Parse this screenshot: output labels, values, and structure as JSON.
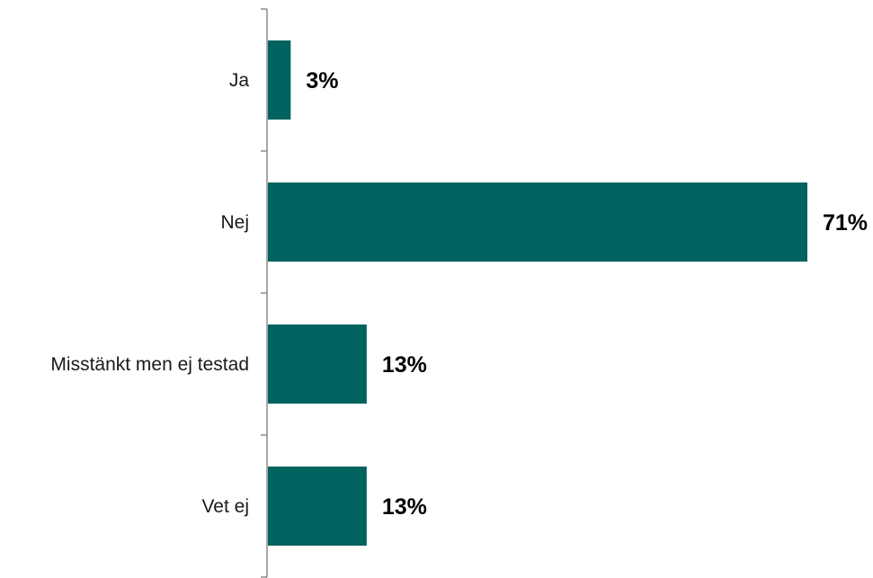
{
  "chart_data": {
    "type": "bar",
    "orientation": "horizontal",
    "categories": [
      "Ja",
      "Nej",
      "Misstänkt men ej testad",
      "Vet ej"
    ],
    "values": [
      3,
      71,
      13,
      13
    ],
    "value_labels": [
      "3%",
      "71%",
      "13%",
      "13%"
    ],
    "unit": "%",
    "title": "",
    "xlabel": "",
    "ylabel": "",
    "xlim": [
      0,
      71
    ],
    "grid": false,
    "legend": "none",
    "bar_color": "#00635f"
  }
}
